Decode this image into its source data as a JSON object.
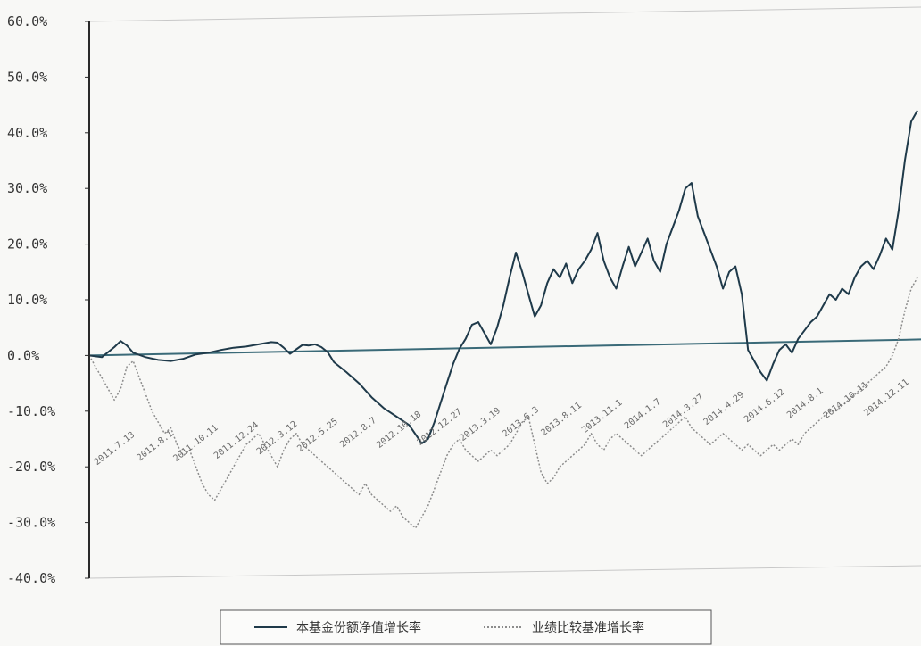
{
  "colors": {
    "fund": "#1f3a4a",
    "benchmark": "#8c8c8c",
    "axis": "#2a2a2a",
    "frame": "#c8c8c8",
    "zero_line": "#3a6a78"
  },
  "chart_data": {
    "type": "line",
    "title": "",
    "xlabel": "",
    "ylabel": "",
    "ylim": [
      -40,
      60
    ],
    "yticks": [
      "60.0%",
      "50.0%",
      "40.0%",
      "30.0%",
      "20.0%",
      "10.0%",
      "0.0%",
      "-10.0%",
      "-20.0%",
      "-30.0%",
      "-40.0%"
    ],
    "y_tick_values": [
      60,
      50,
      40,
      30,
      20,
      10,
      0,
      -10,
      -20,
      -30,
      -40
    ],
    "x_tick_labels": [
      "2011.7.13",
      "2011.8.1",
      "2011.10.11",
      "2011.12.24",
      "2012.3.12",
      "2012.5.25",
      "2012.8.7",
      "2012.10.18",
      "2012.12.27",
      "2013.3.19",
      "2013.6.3",
      "2013.8.11",
      "2013.11.1",
      "2014.1.7",
      "2014.3.27",
      "2014.4.29",
      "2014.6.12",
      "2014.8.1",
      "2014.10.11",
      "2014.12.11"
    ],
    "legend_position": "bottom",
    "grid": false,
    "series": [
      {
        "name": "本基金份额净值增长率",
        "style": "solid",
        "points": [
          [
            0,
            0
          ],
          [
            2,
            -0.3
          ],
          [
            4,
            1.5
          ],
          [
            5,
            2.6
          ],
          [
            6,
            1.8
          ],
          [
            7,
            0.5
          ],
          [
            9,
            -0.3
          ],
          [
            11,
            -0.8
          ],
          [
            13,
            -1
          ],
          [
            15,
            -0.6
          ],
          [
            17,
            0.2
          ],
          [
            19,
            0.5
          ],
          [
            21,
            1
          ],
          [
            23,
            1.4
          ],
          [
            25,
            1.6
          ],
          [
            27,
            2
          ],
          [
            29,
            2.4
          ],
          [
            30,
            2.3
          ],
          [
            31,
            1.4
          ],
          [
            32,
            0.3
          ],
          [
            33,
            1.1
          ],
          [
            34,
            1.9
          ],
          [
            35,
            1.8
          ],
          [
            36,
            2
          ],
          [
            37,
            1.5
          ],
          [
            38,
            0.6
          ],
          [
            39,
            -1.2
          ],
          [
            41,
            -3
          ],
          [
            43,
            -5
          ],
          [
            45,
            -7.5
          ],
          [
            47,
            -9.5
          ],
          [
            49,
            -11
          ],
          [
            51,
            -12.5
          ],
          [
            53,
            -15.8
          ],
          [
            54,
            -15
          ],
          [
            55,
            -12
          ],
          [
            56,
            -8.5
          ],
          [
            57,
            -5
          ],
          [
            58,
            -1.5
          ],
          [
            59,
            1.2
          ],
          [
            60,
            3
          ],
          [
            61,
            5.5
          ],
          [
            62,
            6
          ],
          [
            63,
            4
          ],
          [
            64,
            2
          ],
          [
            65,
            5
          ],
          [
            66,
            9
          ],
          [
            67,
            14
          ],
          [
            68,
            18.5
          ],
          [
            69,
            15
          ],
          [
            70,
            11
          ],
          [
            71,
            7
          ],
          [
            72,
            9
          ],
          [
            73,
            13
          ],
          [
            74,
            15.5
          ],
          [
            75,
            14
          ],
          [
            76,
            16.5
          ],
          [
            77,
            13
          ],
          [
            78,
            15.5
          ],
          [
            79,
            17
          ],
          [
            80,
            19
          ],
          [
            81,
            22
          ],
          [
            82,
            17
          ],
          [
            83,
            14
          ],
          [
            84,
            12
          ],
          [
            85,
            16
          ],
          [
            86,
            19.5
          ],
          [
            87,
            16
          ],
          [
            88,
            18.5
          ],
          [
            89,
            21
          ],
          [
            90,
            17
          ],
          [
            91,
            15
          ],
          [
            92,
            20
          ],
          [
            93,
            23
          ],
          [
            94,
            26
          ],
          [
            95,
            30
          ],
          [
            96,
            31
          ],
          [
            97,
            25
          ],
          [
            98,
            22
          ],
          [
            99,
            19
          ],
          [
            100,
            16
          ],
          [
            101,
            12
          ],
          [
            102,
            15
          ],
          [
            103,
            16
          ],
          [
            104,
            11
          ],
          [
            105,
            1
          ],
          [
            106,
            -1
          ],
          [
            107,
            -3
          ],
          [
            108,
            -4.5
          ],
          [
            109,
            -1.5
          ],
          [
            110,
            1
          ],
          [
            111,
            2
          ],
          [
            112,
            0.5
          ],
          [
            113,
            3
          ],
          [
            114,
            4.5
          ],
          [
            115,
            6
          ],
          [
            116,
            7
          ],
          [
            117,
            9
          ],
          [
            118,
            11
          ],
          [
            119,
            10
          ],
          [
            120,
            12
          ],
          [
            121,
            11
          ],
          [
            122,
            14
          ],
          [
            123,
            16
          ],
          [
            124,
            17
          ],
          [
            125,
            15.5
          ],
          [
            126,
            18
          ],
          [
            127,
            21
          ],
          [
            128,
            19
          ],
          [
            129,
            26
          ],
          [
            130,
            35
          ],
          [
            131,
            42
          ],
          [
            132,
            44
          ]
        ]
      },
      {
        "name": "业绩比较基准增长率",
        "style": "dotted",
        "points": [
          [
            0,
            0
          ],
          [
            1,
            -2
          ],
          [
            2,
            -4
          ],
          [
            3,
            -6
          ],
          [
            4,
            -8
          ],
          [
            5,
            -6
          ],
          [
            6,
            -2
          ],
          [
            7,
            -1
          ],
          [
            8,
            -4
          ],
          [
            9,
            -7
          ],
          [
            10,
            -10
          ],
          [
            11,
            -12
          ],
          [
            12,
            -14
          ],
          [
            13,
            -13
          ],
          [
            14,
            -16
          ],
          [
            15,
            -18
          ],
          [
            16,
            -17
          ],
          [
            17,
            -20
          ],
          [
            18,
            -23
          ],
          [
            19,
            -25
          ],
          [
            20,
            -26
          ],
          [
            21,
            -24
          ],
          [
            22,
            -22
          ],
          [
            23,
            -20
          ],
          [
            24,
            -18
          ],
          [
            25,
            -16
          ],
          [
            26,
            -15
          ],
          [
            27,
            -14
          ],
          [
            28,
            -16
          ],
          [
            29,
            -18
          ],
          [
            30,
            -20
          ],
          [
            31,
            -17
          ],
          [
            32,
            -15
          ],
          [
            33,
            -14
          ],
          [
            34,
            -16
          ],
          [
            35,
            -17
          ],
          [
            36,
            -18
          ],
          [
            37,
            -19
          ],
          [
            38,
            -20
          ],
          [
            39,
            -21
          ],
          [
            40,
            -22
          ],
          [
            41,
            -23
          ],
          [
            42,
            -24
          ],
          [
            43,
            -25
          ],
          [
            44,
            -23
          ],
          [
            45,
            -25
          ],
          [
            46,
            -26
          ],
          [
            47,
            -27
          ],
          [
            48,
            -28
          ],
          [
            49,
            -27
          ],
          [
            50,
            -29
          ],
          [
            51,
            -30
          ],
          [
            52,
            -31
          ],
          [
            53,
            -29
          ],
          [
            54,
            -27
          ],
          [
            55,
            -24
          ],
          [
            56,
            -21
          ],
          [
            57,
            -18
          ],
          [
            58,
            -16
          ],
          [
            59,
            -15
          ],
          [
            60,
            -17
          ],
          [
            61,
            -18
          ],
          [
            62,
            -19
          ],
          [
            63,
            -18
          ],
          [
            64,
            -17
          ],
          [
            65,
            -18
          ],
          [
            66,
            -17
          ],
          [
            67,
            -16
          ],
          [
            68,
            -14
          ],
          [
            69,
            -12
          ],
          [
            70,
            -11
          ],
          [
            71,
            -16
          ],
          [
            72,
            -21
          ],
          [
            73,
            -23
          ],
          [
            74,
            -22
          ],
          [
            75,
            -20
          ],
          [
            76,
            -19
          ],
          [
            77,
            -18
          ],
          [
            78,
            -17
          ],
          [
            79,
            -16
          ],
          [
            80,
            -14
          ],
          [
            81,
            -16
          ],
          [
            82,
            -17
          ],
          [
            83,
            -15
          ],
          [
            84,
            -14
          ],
          [
            85,
            -15
          ],
          [
            86,
            -16
          ],
          [
            87,
            -17
          ],
          [
            88,
            -18
          ],
          [
            89,
            -17
          ],
          [
            90,
            -16
          ],
          [
            91,
            -15
          ],
          [
            92,
            -14
          ],
          [
            93,
            -13
          ],
          [
            94,
            -12
          ],
          [
            95,
            -11
          ],
          [
            96,
            -13
          ],
          [
            97,
            -14
          ],
          [
            98,
            -15
          ],
          [
            99,
            -16
          ],
          [
            100,
            -15
          ],
          [
            101,
            -14
          ],
          [
            102,
            -15
          ],
          [
            103,
            -16
          ],
          [
            104,
            -17
          ],
          [
            105,
            -16
          ],
          [
            106,
            -17
          ],
          [
            107,
            -18
          ],
          [
            108,
            -17
          ],
          [
            109,
            -16
          ],
          [
            110,
            -17
          ],
          [
            111,
            -16
          ],
          [
            112,
            -15
          ],
          [
            113,
            -16
          ],
          [
            114,
            -14
          ],
          [
            115,
            -13
          ],
          [
            116,
            -12
          ],
          [
            117,
            -11
          ],
          [
            118,
            -10
          ],
          [
            119,
            -10
          ],
          [
            120,
            -9
          ],
          [
            121,
            -8
          ],
          [
            122,
            -7
          ],
          [
            123,
            -6
          ],
          [
            124,
            -5
          ],
          [
            125,
            -4
          ],
          [
            126,
            -3
          ],
          [
            127,
            -2
          ],
          [
            128,
            0
          ],
          [
            129,
            3
          ],
          [
            130,
            8
          ],
          [
            131,
            12
          ],
          [
            132,
            14
          ]
        ]
      }
    ]
  },
  "legend": {
    "items": [
      {
        "label": "本基金份额净值增长率",
        "style": "solid"
      },
      {
        "label": "业绩比较基准增长率",
        "style": "dotted"
      }
    ]
  }
}
